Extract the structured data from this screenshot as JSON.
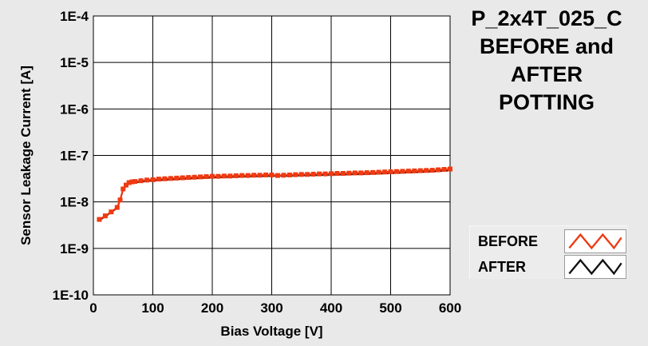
{
  "title_lines": [
    "P_2x4T_025_C",
    "BEFORE and",
    "AFTER",
    "POTTING"
  ],
  "legend": [
    {
      "label": "BEFORE",
      "color": "#ef3a12"
    },
    {
      "label": "AFTER",
      "color": "#111111"
    }
  ],
  "chart_data": {
    "type": "line",
    "xlabel": "Bias Voltage [V]",
    "ylabel": "Sensor Leakage Current [A]",
    "xlim": [
      0,
      600
    ],
    "ylim": [
      1e-10,
      0.0001
    ],
    "yscale": "log",
    "grid": true,
    "x_ticks": [
      "0",
      "100",
      "200",
      "300",
      "400",
      "500",
      "600"
    ],
    "y_ticks": [
      "1E-10",
      "1E-9",
      "1E-8",
      "1E-7",
      "1E-6",
      "1E-5",
      "1E-4"
    ],
    "series": [
      {
        "name": "BEFORE",
        "color": "#ef3a12",
        "marker": "square",
        "x": [
          10,
          20,
          30,
          40,
          45,
          50,
          55,
          60,
          65,
          70,
          80,
          90,
          100,
          110,
          120,
          130,
          140,
          150,
          160,
          170,
          180,
          190,
          200,
          210,
          220,
          230,
          240,
          250,
          260,
          270,
          280,
          290,
          300,
          310,
          320,
          330,
          340,
          350,
          360,
          370,
          380,
          390,
          400,
          410,
          420,
          430,
          440,
          450,
          460,
          470,
          480,
          490,
          500,
          510,
          520,
          530,
          540,
          550,
          560,
          570,
          580,
          590,
          600
        ],
        "y": [
          4.2e-09,
          5e-09,
          6.1e-09,
          7.6e-09,
          1.1e-08,
          1.9e-08,
          2.3e-08,
          2.6e-08,
          2.7e-08,
          2.75e-08,
          2.85e-08,
          2.95e-08,
          3e-08,
          3.1e-08,
          3.15e-08,
          3.2e-08,
          3.25e-08,
          3.3e-08,
          3.35e-08,
          3.4e-08,
          3.45e-08,
          3.5e-08,
          3.55e-08,
          3.55e-08,
          3.6e-08,
          3.6e-08,
          3.65e-08,
          3.7e-08,
          3.7e-08,
          3.75e-08,
          3.75e-08,
          3.8e-08,
          3.8e-08,
          3.7e-08,
          3.75e-08,
          3.8e-08,
          3.85e-08,
          3.9e-08,
          3.9e-08,
          3.95e-08,
          4e-08,
          4e-08,
          4.05e-08,
          4.1e-08,
          4.1e-08,
          4.15e-08,
          4.2e-08,
          4.2e-08,
          4.25e-08,
          4.3e-08,
          4.35e-08,
          4.4e-08,
          4.45e-08,
          4.5e-08,
          4.55e-08,
          4.6e-08,
          4.65e-08,
          4.7e-08,
          4.75e-08,
          4.8e-08,
          4.9e-08,
          5e-08,
          5.1e-08
        ]
      },
      {
        "name": "AFTER",
        "color": "#111111",
        "marker": "none",
        "x": [
          10,
          20,
          30,
          40,
          45,
          50,
          55,
          60,
          65,
          70,
          80,
          90,
          100,
          120,
          140,
          160,
          180,
          200,
          220,
          240,
          260,
          280,
          300,
          320,
          340,
          360,
          380,
          400,
          420,
          440,
          460,
          480,
          500,
          520,
          540,
          560,
          580,
          600
        ],
        "y": [
          4e-09,
          4.8e-09,
          5.9e-09,
          7.3e-09,
          1.05e-08,
          1.8e-08,
          2.2e-08,
          2.45e-08,
          2.55e-08,
          2.6e-08,
          2.7e-08,
          2.8e-08,
          2.85e-08,
          2.95e-08,
          3.05e-08,
          3.15e-08,
          3.25e-08,
          3.3e-08,
          3.4e-08,
          3.45e-08,
          3.5e-08,
          3.55e-08,
          3.6e-08,
          3.6e-08,
          3.65e-08,
          3.7e-08,
          3.75e-08,
          3.8e-08,
          3.85e-08,
          3.9e-08,
          3.95e-08,
          4e-08,
          4.1e-08,
          4.2e-08,
          4.3e-08,
          4.4e-08,
          4.55e-08,
          4.7e-08
        ]
      }
    ]
  }
}
